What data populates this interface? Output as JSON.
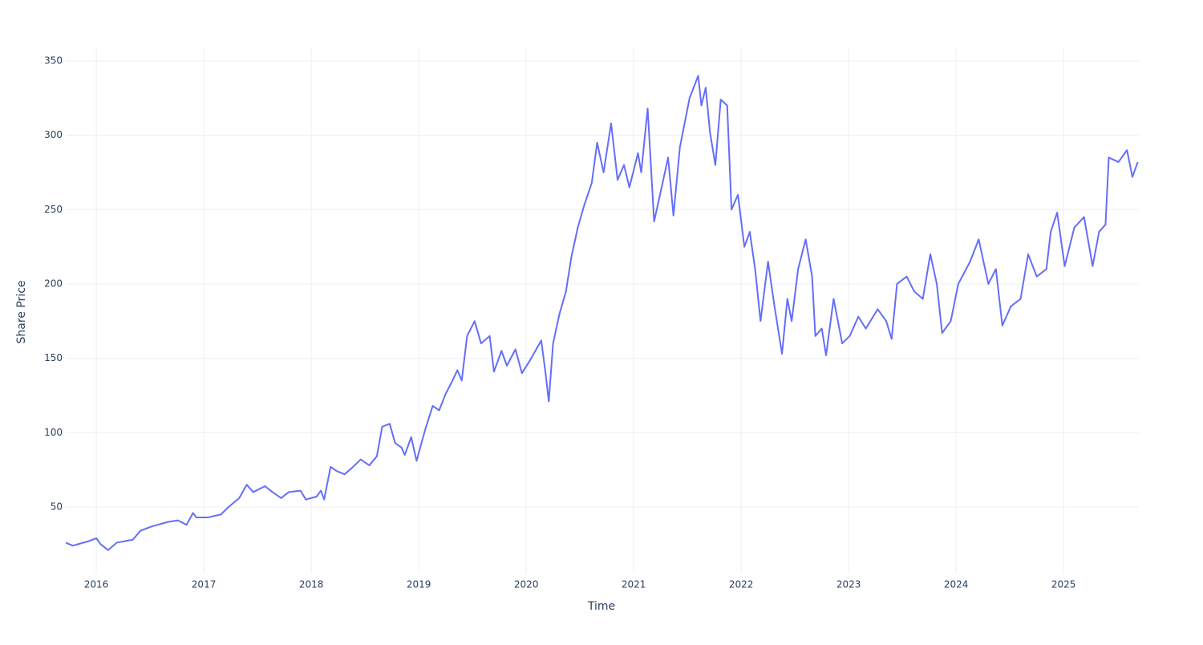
{
  "chart_data": {
    "type": "line",
    "x_label": "Time",
    "y_label": "Share Price",
    "x": [
      2015.716,
      2015.78,
      2015.93,
      2016.0,
      2016.04,
      2016.11,
      2016.19,
      2016.34,
      2016.41,
      2016.52,
      2016.67,
      2016.76,
      2016.84,
      2016.9,
      2016.93,
      2017.04,
      2017.16,
      2017.23,
      2017.33,
      2017.4,
      2017.46,
      2017.57,
      2017.64,
      2017.72,
      2017.79,
      2017.9,
      2017.95,
      2018.05,
      2018.09,
      2018.12,
      2018.18,
      2018.24,
      2018.31,
      2018.39,
      2018.46,
      2018.54,
      2018.61,
      2018.66,
      2018.73,
      2018.78,
      2018.84,
      2018.87,
      2018.93,
      2018.98,
      2019.06,
      2019.13,
      2019.19,
      2019.25,
      2019.3,
      2019.36,
      2019.4,
      2019.45,
      2019.52,
      2019.58,
      2019.66,
      2019.7,
      2019.77,
      2019.82,
      2019.9,
      2019.96,
      2020.03,
      2020.14,
      2020.18,
      2020.21,
      2020.25,
      2020.31,
      2020.37,
      2020.42,
      2020.48,
      2020.54,
      2020.61,
      2020.66,
      2020.72,
      2020.79,
      2020.85,
      2020.91,
      2020.96,
      2021.04,
      2021.07,
      2021.13,
      2021.19,
      2021.26,
      2021.32,
      2021.37,
      2021.43,
      2021.52,
      2021.6,
      2021.63,
      2021.67,
      2021.71,
      2021.76,
      2021.81,
      2021.87,
      2021.91,
      2021.97,
      2022.03,
      2022.08,
      2022.13,
      2022.18,
      2022.25,
      2022.31,
      2022.38,
      2022.43,
      2022.47,
      2022.53,
      2022.6,
      2022.66,
      2022.69,
      2022.75,
      2022.79,
      2022.86,
      2022.94,
      2023.01,
      2023.09,
      2023.16,
      2023.27,
      2023.35,
      2023.4,
      2023.45,
      2023.54,
      2023.61,
      2023.69,
      2023.76,
      2023.82,
      2023.87,
      2023.95,
      2024.02,
      2024.13,
      2024.21,
      2024.3,
      2024.37,
      2024.43,
      2024.51,
      2024.6,
      2024.67,
      2024.75,
      2024.84,
      2024.88,
      2024.94,
      2025.01,
      2025.1,
      2025.19,
      2025.27,
      2025.33,
      2025.39,
      2025.42,
      2025.51,
      2025.59,
      2025.64,
      2025.69
    ],
    "series": [
      {
        "color": "#636efa",
        "values": [
          26,
          24,
          27,
          29,
          25,
          21,
          26,
          28,
          34,
          37,
          40,
          41,
          38,
          46,
          43,
          43,
          45,
          50,
          56,
          65,
          60,
          64,
          60,
          56,
          60,
          61,
          55,
          57,
          61,
          55,
          77,
          74,
          72,
          77,
          82,
          78,
          84,
          104,
          106,
          93,
          90,
          85,
          97,
          81,
          102,
          118,
          115,
          126,
          133,
          142,
          135,
          165,
          175,
          160,
          165,
          141,
          155,
          145,
          156,
          140,
          148,
          162,
          140,
          121,
          160,
          180,
          195,
          218,
          238,
          253,
          268,
          295,
          275,
          308,
          270,
          280,
          265,
          288,
          275,
          318,
          242,
          265,
          285,
          246,
          292,
          325,
          340,
          320,
          332,
          302,
          280,
          324,
          320,
          250,
          260,
          225,
          235,
          210,
          175,
          215,
          185,
          153,
          190,
          175,
          210,
          230,
          205,
          165,
          170,
          152,
          190,
          160,
          165,
          178,
          170,
          183,
          175,
          163,
          200,
          205,
          195,
          190,
          220,
          200,
          167,
          175,
          200,
          215,
          230,
          200,
          210,
          172,
          185,
          190,
          220,
          205,
          210,
          235,
          248,
          212,
          238,
          245,
          212,
          235,
          240,
          285,
          282,
          290,
          272,
          282
        ]
      }
    ],
    "xlim": [
      2015.716,
      2025.7
    ],
    "xticks": [
      2016,
      2017,
      2018,
      2019,
      2020,
      2021,
      2022,
      2023,
      2024,
      2025
    ],
    "ylim": [
      5.2,
      358.6
    ],
    "yticks": [
      50,
      100,
      150,
      200,
      250,
      300,
      350
    ],
    "grid": true
  }
}
